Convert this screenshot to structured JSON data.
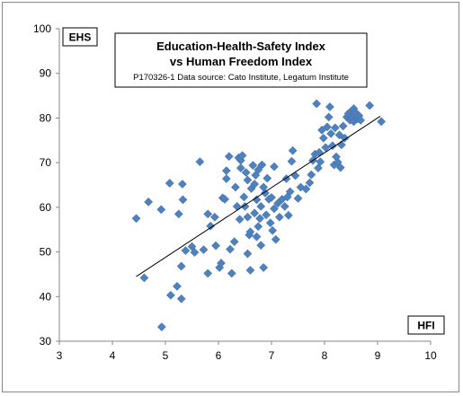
{
  "chart_data": {
    "type": "scatter",
    "title_line1": "Education-Health-Safety Index",
    "title_line2": "vs Human Freedom Index",
    "source": "P170326-1 Data source: Cato Institute, Legatum Institute",
    "ylabel": "EHS",
    "xlabel": "HFI",
    "xlim": [
      3,
      10
    ],
    "ylim": [
      30,
      100
    ],
    "xticks": [
      "3",
      "4",
      "5",
      "6",
      "7",
      "8",
      "9",
      "10"
    ],
    "yticks": [
      "30",
      "40",
      "50",
      "60",
      "70",
      "80",
      "90",
      "100"
    ],
    "grid": false,
    "marker_color": "#4F81BD",
    "trendline": {
      "x": [
        4.45,
        9.05
      ],
      "y": [
        44.5,
        80.4
      ]
    },
    "points": [
      [
        4.45,
        57.5
      ],
      [
        4.6,
        44.2
      ],
      [
        4.68,
        61.2
      ],
      [
        4.92,
        59.5
      ],
      [
        4.93,
        33.2
      ],
      [
        5.08,
        65.4
      ],
      [
        5.1,
        40.3
      ],
      [
        5.22,
        42.3
      ],
      [
        5.25,
        58.5
      ],
      [
        5.3,
        46.8
      ],
      [
        5.3,
        39.5
      ],
      [
        5.32,
        65.2
      ],
      [
        5.33,
        61.7
      ],
      [
        5.38,
        50.3
      ],
      [
        5.5,
        51.2
      ],
      [
        5.55,
        49.9
      ],
      [
        5.65,
        70.2
      ],
      [
        5.72,
        50.5
      ],
      [
        5.8,
        45.2
      ],
      [
        5.8,
        58.5
      ],
      [
        5.85,
        55.8
      ],
      [
        5.93,
        57.8
      ],
      [
        5.95,
        51.4
      ],
      [
        6.02,
        46.5
      ],
      [
        6.05,
        47.5
      ],
      [
        6.08,
        62.1
      ],
      [
        6.12,
        61.8
      ],
      [
        6.15,
        66.4
      ],
      [
        6.15,
        68.2
      ],
      [
        6.2,
        71.4
      ],
      [
        6.22,
        50.6
      ],
      [
        6.25,
        45.2
      ],
      [
        6.3,
        52.3
      ],
      [
        6.32,
        64.5
      ],
      [
        6.35,
        60.2
      ],
      [
        6.38,
        71.1
      ],
      [
        6.4,
        57.3
      ],
      [
        6.42,
        68.8
      ],
      [
        6.42,
        70.5
      ],
      [
        6.45,
        71.6
      ],
      [
        6.48,
        62.3
      ],
      [
        6.5,
        60.2
      ],
      [
        6.52,
        67.8
      ],
      [
        6.55,
        66.1
      ],
      [
        6.55,
        57.8
      ],
      [
        6.55,
        49.6
      ],
      [
        6.58,
        53.8
      ],
      [
        6.6,
        54.5
      ],
      [
        6.6,
        45.9
      ],
      [
        6.62,
        64.2
      ],
      [
        6.65,
        69.4
      ],
      [
        6.68,
        65.2
      ],
      [
        6.68,
        58.7
      ],
      [
        6.7,
        67.2
      ],
      [
        6.72,
        61.7
      ],
      [
        6.72,
        53.4
      ],
      [
        6.75,
        68.4
      ],
      [
        6.75,
        55.7
      ],
      [
        6.78,
        57.5
      ],
      [
        6.8,
        60.2
      ],
      [
        6.8,
        51.5
      ],
      [
        6.82,
        69.5
      ],
      [
        6.85,
        64.5
      ],
      [
        6.85,
        46.5
      ],
      [
        6.88,
        63.2
      ],
      [
        6.9,
        58.3
      ],
      [
        6.92,
        66.5
      ],
      [
        6.95,
        61.8
      ],
      [
        6.98,
        56.5
      ],
      [
        7.0,
        62.2
      ],
      [
        7.02,
        54.8
      ],
      [
        7.05,
        69.1
      ],
      [
        7.05,
        59.7
      ],
      [
        7.08,
        52.8
      ],
      [
        7.12,
        60.9
      ],
      [
        7.15,
        57.8
      ],
      [
        7.2,
        61.8
      ],
      [
        7.25,
        60.2
      ],
      [
        7.28,
        66.4
      ],
      [
        7.3,
        62.3
      ],
      [
        7.32,
        58.2
      ],
      [
        7.35,
        63.5
      ],
      [
        7.38,
        70.3
      ],
      [
        7.4,
        72.7
      ],
      [
        7.45,
        67.1
      ],
      [
        7.5,
        62.0
      ],
      [
        7.55,
        64.5
      ],
      [
        7.65,
        64.1
      ],
      [
        7.72,
        65.5
      ],
      [
        7.75,
        67.3
      ],
      [
        7.78,
        70.5
      ],
      [
        7.82,
        71.9
      ],
      [
        7.85,
        83.2
      ],
      [
        7.88,
        68.8
      ],
      [
        7.9,
        72.3
      ],
      [
        7.92,
        70.2
      ],
      [
        7.95,
        77.3
      ],
      [
        7.98,
        75.5
      ],
      [
        8.02,
        73.4
      ],
      [
        8.05,
        78.0
      ],
      [
        8.08,
        80.2
      ],
      [
        8.1,
        82.5
      ],
      [
        8.12,
        76.5
      ],
      [
        8.15,
        73.8
      ],
      [
        8.18,
        69.5
      ],
      [
        8.2,
        77.8
      ],
      [
        8.22,
        71.3
      ],
      [
        8.25,
        70.1
      ],
      [
        8.28,
        76.2
      ],
      [
        8.3,
        68.9
      ],
      [
        8.32,
        74.0
      ],
      [
        8.35,
        78.2
      ],
      [
        8.38,
        75.5
      ],
      [
        8.42,
        80.2
      ],
      [
        8.45,
        81.0
      ],
      [
        8.48,
        79.5
      ],
      [
        8.5,
        81.5
      ],
      [
        8.52,
        80.3
      ],
      [
        8.55,
        82.1
      ],
      [
        8.55,
        79.2
      ],
      [
        8.58,
        81.3
      ],
      [
        8.6,
        80.8
      ],
      [
        8.62,
        79.8
      ],
      [
        8.65,
        80.5
      ],
      [
        8.68,
        79.5
      ],
      [
        8.85,
        82.8
      ],
      [
        9.07,
        79.2
      ]
    ]
  }
}
